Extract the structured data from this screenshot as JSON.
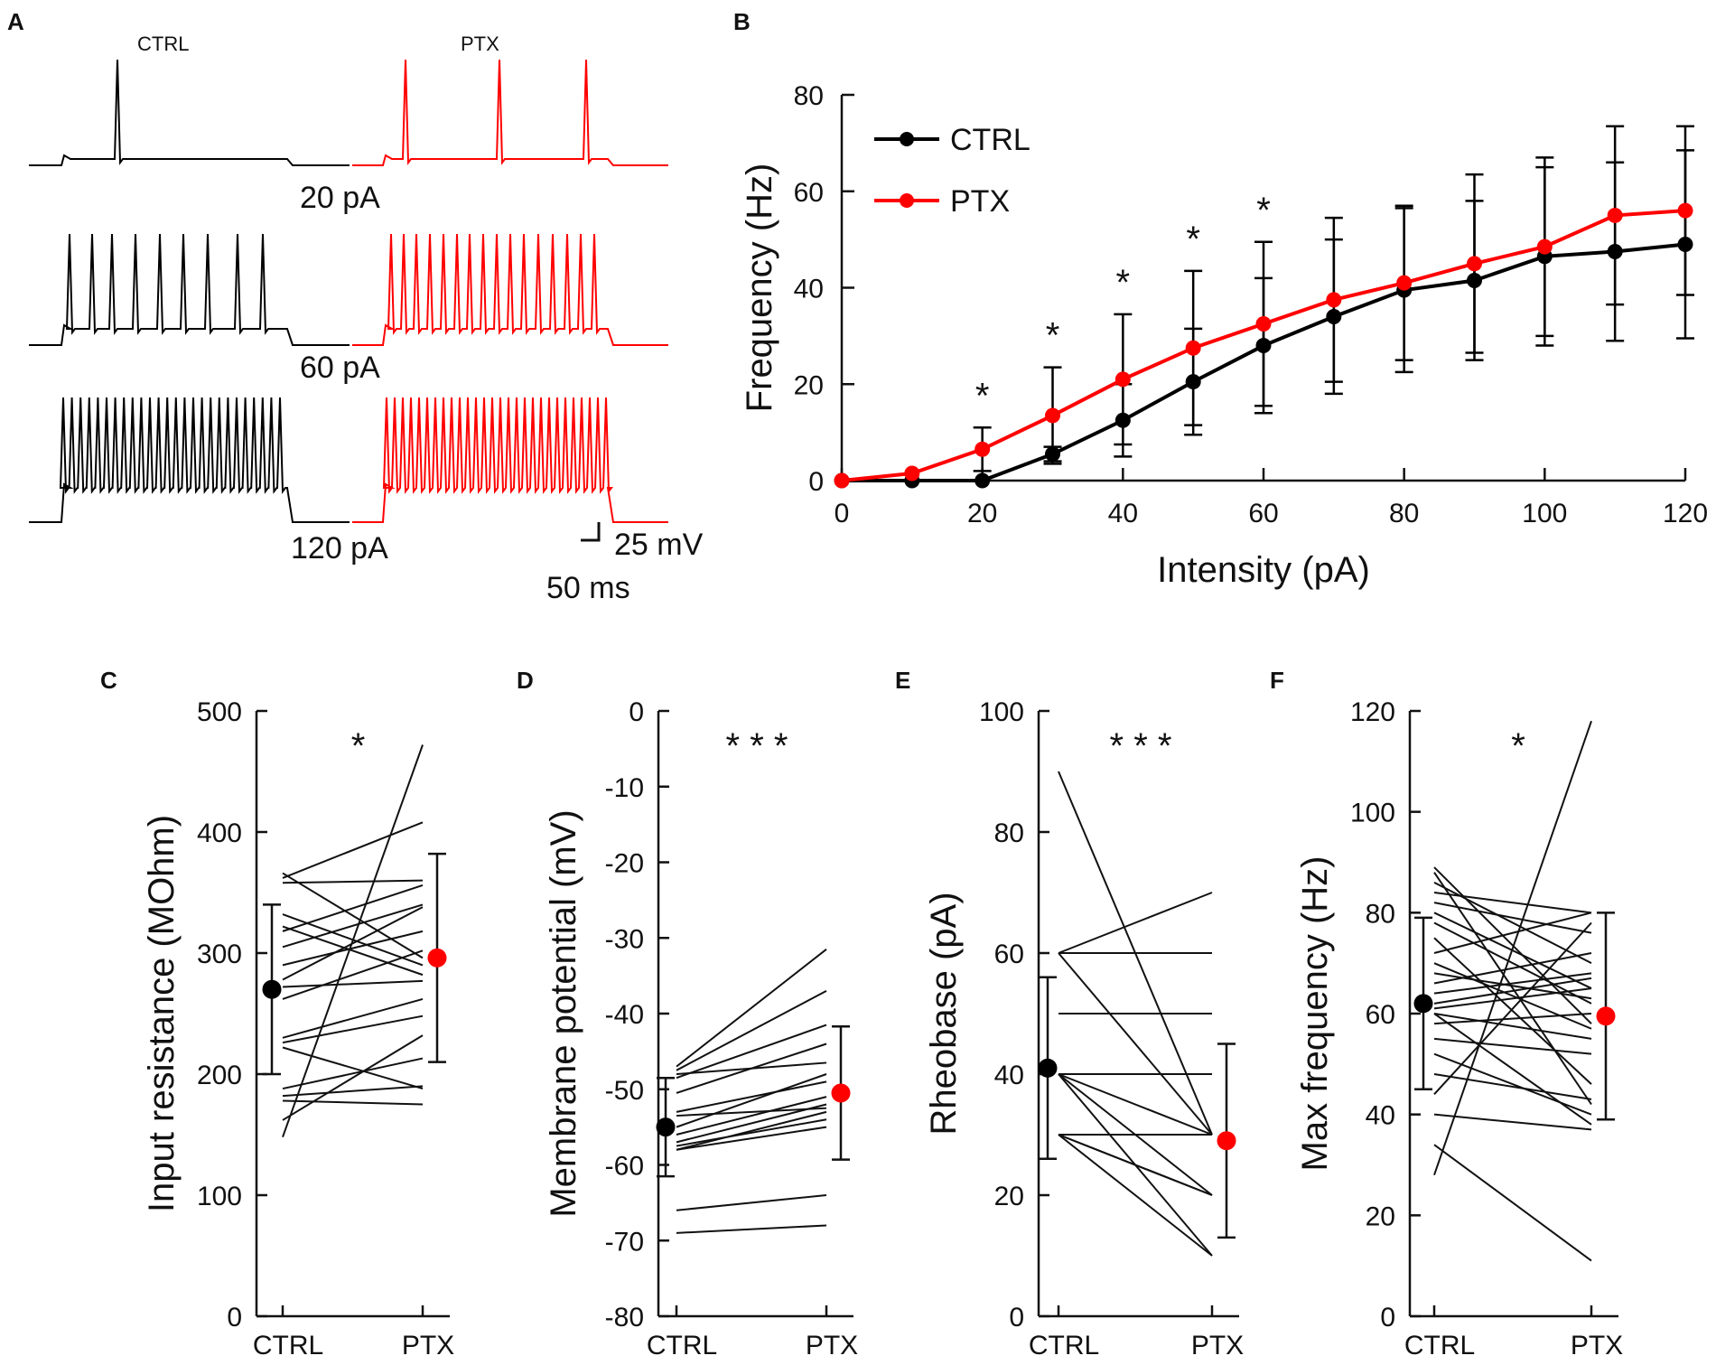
{
  "colors": {
    "ctrl": "#000000",
    "ptx": "#ff0000"
  },
  "panel_letters": {
    "a": "A",
    "b": "B",
    "c": "C",
    "d": "D",
    "e": "E",
    "f": "F"
  },
  "panel_a": {
    "ctrl_label": "CTRL",
    "ptx_label": "PTX",
    "current_labels": [
      "20 pA",
      "60 pA",
      "120 pA"
    ],
    "scale_voltage": "25 mV",
    "scale_time": "50 ms"
  },
  "chart_data": [
    {
      "panel": "B",
      "type": "line",
      "title": "",
      "xlabel": "Intensity  (pA)",
      "ylabel": "Frequency  (Hz)",
      "xlim": [
        0,
        120
      ],
      "ylim": [
        0,
        80
      ],
      "xticks": [
        0,
        20,
        40,
        60,
        80,
        100,
        120
      ],
      "yticks": [
        0,
        20,
        40,
        60,
        80
      ],
      "legend_position": "top-left",
      "x": [
        0,
        10,
        20,
        30,
        40,
        50,
        60,
        70,
        80,
        90,
        100,
        110,
        120
      ],
      "series": [
        {
          "name": "CTRL",
          "color": "#000000",
          "values": [
            0,
            0,
            0,
            5.5,
            12.5,
            20.5,
            28,
            34,
            39.5,
            41.5,
            46.5,
            47.5,
            49
          ],
          "error": [
            0,
            0,
            0,
            1.5,
            7.5,
            11,
            14,
            16,
            17,
            16.5,
            18.5,
            18.5,
            19.5
          ]
        },
        {
          "name": "PTX",
          "color": "#ff0000",
          "values": [
            0,
            1.5,
            6.5,
            13.5,
            21,
            27.5,
            32.5,
            37.5,
            41,
            45,
            48.5,
            55,
            56
          ],
          "error": [
            0,
            0,
            4.5,
            10,
            13.5,
            16,
            17,
            17,
            16,
            18.5,
            18.5,
            18.5,
            17.5
          ]
        }
      ],
      "significance": [
        {
          "x": 20,
          "label": "*"
        },
        {
          "x": 30,
          "label": "*"
        },
        {
          "x": 40,
          "label": "*"
        },
        {
          "x": 50,
          "label": "*"
        },
        {
          "x": 60,
          "label": "*"
        }
      ]
    },
    {
      "panel": "C",
      "type": "paired",
      "ylabel": "Input  resistance (MOhm)",
      "categories": [
        "CTRL",
        "PTX"
      ],
      "ylim": [
        0,
        500
      ],
      "yticks": [
        0,
        100,
        200,
        300,
        400,
        500
      ],
      "significance": "*",
      "pairs": [
        [
          148,
          472
        ],
        [
          162,
          232
        ],
        [
          178,
          175
        ],
        [
          182,
          190
        ],
        [
          188,
          213
        ],
        [
          222,
          188
        ],
        [
          226,
          248
        ],
        [
          230,
          262
        ],
        [
          262,
          302
        ],
        [
          272,
          277
        ],
        [
          278,
          338
        ],
        [
          290,
          318
        ],
        [
          305,
          340
        ],
        [
          318,
          356
        ],
        [
          322,
          282
        ],
        [
          332,
          290
        ],
        [
          358,
          360
        ],
        [
          362,
          408
        ],
        [
          366,
          296
        ]
      ],
      "mean": {
        "CTRL": 270,
        "PTX": 296
      },
      "sd": {
        "CTRL": 70,
        "PTX": 86
      }
    },
    {
      "panel": "D",
      "type": "paired",
      "ylabel": "Membrane  potential  (mV)",
      "categories": [
        "CTRL",
        "PTX"
      ],
      "ylim": [
        -80,
        0
      ],
      "yticks": [
        0,
        -10,
        -20,
        -30,
        -40,
        -50,
        -60,
        -70,
        -80
      ],
      "significance": "* * *",
      "pairs": [
        [
          -47,
          -31.5
        ],
        [
          -47.5,
          -37
        ],
        [
          -48,
          -46.5
        ],
        [
          -48.5,
          -41.5
        ],
        [
          -50.5,
          -44
        ],
        [
          -53,
          -49
        ],
        [
          -53.5,
          -52.5
        ],
        [
          -55,
          -48
        ],
        [
          -56,
          -51
        ],
        [
          -57,
          -52
        ],
        [
          -57.5,
          -54
        ],
        [
          -58,
          -55
        ],
        [
          -58,
          -53
        ],
        [
          -66,
          -64
        ],
        [
          -69,
          -68
        ]
      ],
      "mean": {
        "CTRL": -55,
        "PTX": -50.5
      },
      "sd": {
        "CTRL": 6.5,
        "PTX": 8.8
      }
    },
    {
      "panel": "E",
      "type": "paired",
      "ylabel": "Rheobase  (pA)",
      "categories": [
        "CTRL",
        "PTX"
      ],
      "ylim": [
        0,
        100
      ],
      "yticks": [
        0,
        20,
        40,
        60,
        80,
        100
      ],
      "significance": "* * *",
      "pairs": [
        [
          90,
          30
        ],
        [
          60,
          70
        ],
        [
          60,
          60
        ],
        [
          60,
          30
        ],
        [
          50,
          50
        ],
        [
          40,
          40
        ],
        [
          40,
          30
        ],
        [
          40,
          20
        ],
        [
          40,
          10
        ],
        [
          30,
          30
        ],
        [
          30,
          20
        ],
        [
          30,
          10
        ],
        [
          30,
          20
        ]
      ],
      "mean": {
        "CTRL": 41,
        "PTX": 29
      },
      "sd": {
        "CTRL": 15,
        "PTX": 16
      }
    },
    {
      "panel": "F",
      "type": "paired",
      "ylabel": "Max frequency  (Hz)",
      "categories": [
        "CTRL",
        "PTX"
      ],
      "ylim": [
        0,
        120
      ],
      "yticks": [
        0,
        20,
        40,
        60,
        80,
        100,
        120
      ],
      "significance": "*",
      "pairs": [
        [
          28,
          118
        ],
        [
          34,
          11
        ],
        [
          40,
          37
        ],
        [
          44,
          78
        ],
        [
          48,
          43
        ],
        [
          52,
          40
        ],
        [
          55,
          52
        ],
        [
          58,
          60
        ],
        [
          60,
          55
        ],
        [
          61,
          65
        ],
        [
          62,
          67
        ],
        [
          64,
          68
        ],
        [
          66,
          72
        ],
        [
          68,
          63
        ],
        [
          70,
          57
        ],
        [
          72,
          80
        ],
        [
          75,
          46
        ],
        [
          78,
          62
        ],
        [
          80,
          65
        ],
        [
          82,
          76
        ],
        [
          84,
          80
        ],
        [
          86,
          70
        ],
        [
          88,
          42
        ],
        [
          89,
          58
        ],
        [
          60,
          38
        ]
      ],
      "mean": {
        "CTRL": 62,
        "PTX": 59.5
      },
      "sd": {
        "CTRL": 17,
        "PTX": 20.5
      }
    }
  ]
}
